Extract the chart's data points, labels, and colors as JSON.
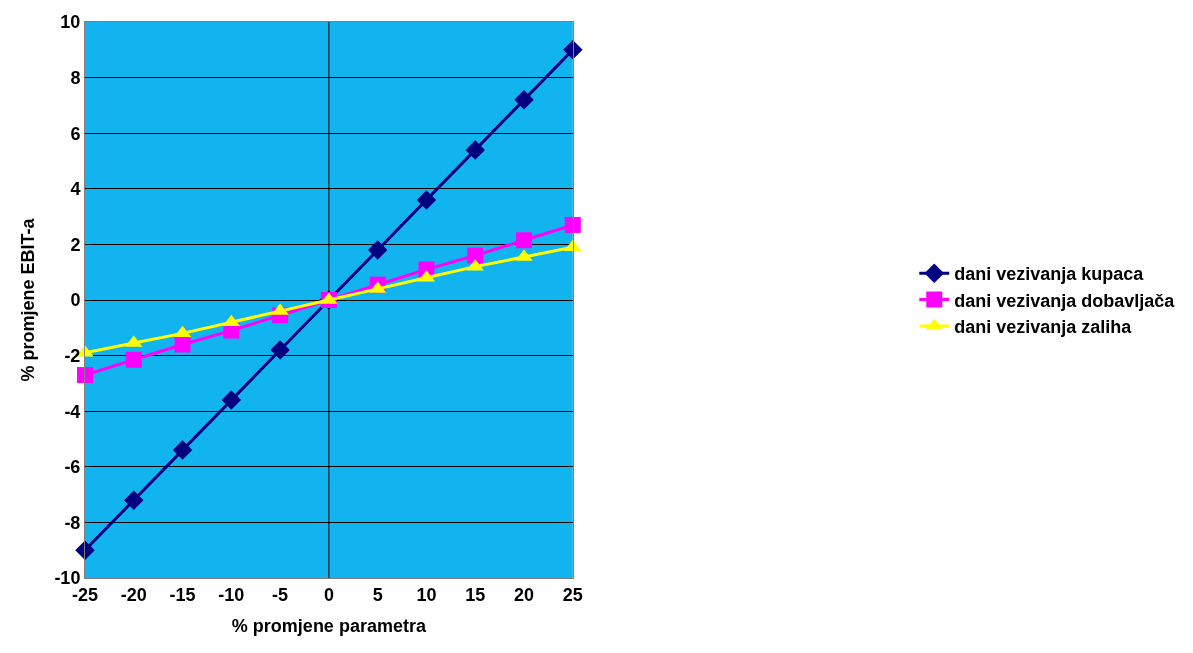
{
  "chart_data": {
    "type": "line",
    "xlabel": "% promjene parametra",
    "ylabel": "% promjene EBIT-a",
    "x": [
      -25,
      -20,
      -15,
      -10,
      -5,
      0,
      5,
      10,
      15,
      20,
      25
    ],
    "series": [
      {
        "name": "dani vezivanja kupaca",
        "color": "#000080",
        "marker": "diamond",
        "values": [
          -9,
          -7.2,
          -5.4,
          -3.6,
          -1.8,
          0,
          1.8,
          3.6,
          5.4,
          7.2,
          9
        ]
      },
      {
        "name": "dani vezivanja dobavljača",
        "color": "#ff00ff",
        "marker": "square",
        "values": [
          -2.7,
          -2.15,
          -1.6,
          -1.1,
          -0.55,
          0,
          0.55,
          1.1,
          1.6,
          2.15,
          2.7
        ]
      },
      {
        "name": "dani vezivanja zaliha",
        "color": "#ffff00",
        "marker": "triangle",
        "values": [
          -1.9,
          -1.55,
          -1.2,
          -0.8,
          -0.4,
          0,
          0.4,
          0.8,
          1.2,
          1.55,
          1.9
        ]
      }
    ],
    "xlim": [
      -25,
      25
    ],
    "xticks": [
      -25,
      -20,
      -15,
      -10,
      -5,
      0,
      5,
      10,
      15,
      20,
      25
    ],
    "ylim": [
      -10,
      10
    ],
    "yticks": [
      -10,
      -8,
      -6,
      -4,
      -2,
      0,
      2,
      4,
      6,
      8,
      10
    ],
    "ref_lines": [
      {
        "axis": "x",
        "value": 0,
        "color": "#000000"
      }
    ],
    "grid": "y",
    "legend": "right",
    "line_style": "solid"
  }
}
